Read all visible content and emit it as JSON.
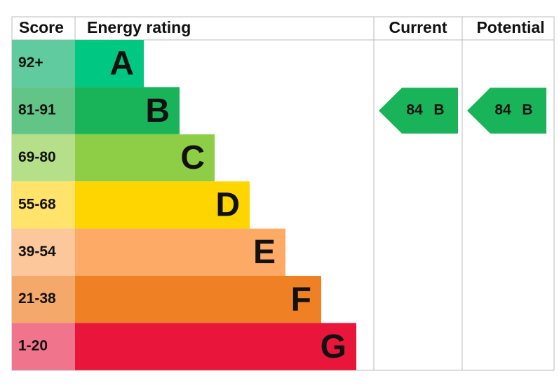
{
  "header": {
    "score": "Score",
    "rating": "Energy rating",
    "current": "Current",
    "potential": "Potential"
  },
  "bands": [
    {
      "score": "92+",
      "letter": "A",
      "color": "#00c781",
      "score_color": "#5fcb9f"
    },
    {
      "score": "81-91",
      "letter": "B",
      "color": "#19b459",
      "score_color": "#63c488"
    },
    {
      "score": "69-80",
      "letter": "C",
      "color": "#8dce46",
      "score_color": "#b5df88"
    },
    {
      "score": "55-68",
      "letter": "D",
      "color": "#ffd500",
      "score_color": "#ffe36a"
    },
    {
      "score": "39-54",
      "letter": "E",
      "color": "#fcaa65",
      "score_color": "#fdc79c"
    },
    {
      "score": "21-38",
      "letter": "F",
      "color": "#ef8023",
      "score_color": "#f4a96a"
    },
    {
      "score": "1-20",
      "letter": "G",
      "color": "#e9153b",
      "score_color": "#f0748c"
    }
  ],
  "current": {
    "score": 84,
    "band": "B"
  },
  "potential": {
    "score": 84,
    "band": "B"
  }
}
